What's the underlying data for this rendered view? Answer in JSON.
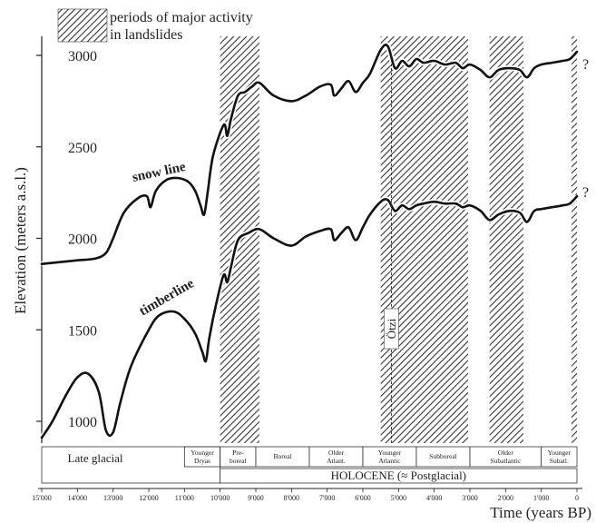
{
  "chart_data": {
    "type": "line",
    "title": "",
    "xlabel": "Time (years BP)",
    "ylabel": "Elevation (meters a.s.l.)",
    "x_reversed": true,
    "xlim": [
      15000,
      0
    ],
    "ylim": [
      900,
      3100
    ],
    "x_ticks": [
      15000,
      14000,
      13000,
      12000,
      11000,
      10000,
      9000,
      8000,
      7000,
      6000,
      5000,
      4000,
      3000,
      2000,
      1000,
      0
    ],
    "x_tick_labels": [
      "15'000",
      "14'000",
      "13'000",
      "12'000",
      "11'000",
      "10'000",
      "9'000",
      "8'000",
      "7'000",
      "6'000",
      "5'000",
      "4'000",
      "3'000",
      "2'000",
      "1'000",
      "0"
    ],
    "y_ticks": [
      1000,
      1500,
      2000,
      2500,
      3000
    ],
    "y_tick_labels": [
      "1000",
      "1500",
      "2000",
      "2500",
      "3000"
    ],
    "legend": {
      "label_line1": "periods of major activity",
      "label_line2": "in landslides",
      "placement": "top-left"
    },
    "shaded_periods": [
      {
        "from": 10000,
        "to": 8900
      },
      {
        "from": 5500,
        "to": 3050
      },
      {
        "from": 2450,
        "to": 1500
      },
      {
        "from": 150,
        "to": 0
      }
    ],
    "annotations": {
      "otzi": "Ötzi",
      "otzi_x": 5200,
      "unknown_mark": "?"
    },
    "series": [
      {
        "name": "snow line",
        "points": [
          [
            15000,
            1860
          ],
          [
            14500,
            1870
          ],
          [
            14000,
            1880
          ],
          [
            13500,
            1890
          ],
          [
            13200,
            1920
          ],
          [
            13000,
            2000
          ],
          [
            12700,
            2140
          ],
          [
            12300,
            2220
          ],
          [
            12050,
            2230
          ],
          [
            11950,
            2170
          ],
          [
            11800,
            2260
          ],
          [
            11500,
            2320
          ],
          [
            11200,
            2330
          ],
          [
            10900,
            2310
          ],
          [
            10700,
            2260
          ],
          [
            10550,
            2180
          ],
          [
            10450,
            2130
          ],
          [
            10350,
            2250
          ],
          [
            10200,
            2450
          ],
          [
            9900,
            2620
          ],
          [
            9800,
            2560
          ],
          [
            9700,
            2650
          ],
          [
            9500,
            2780
          ],
          [
            9300,
            2800
          ],
          [
            9100,
            2830
          ],
          [
            8900,
            2850
          ],
          [
            8500,
            2780
          ],
          [
            8000,
            2750
          ],
          [
            7600,
            2780
          ],
          [
            7200,
            2830
          ],
          [
            6900,
            2840
          ],
          [
            6800,
            2780
          ],
          [
            6600,
            2820
          ],
          [
            6400,
            2860
          ],
          [
            6200,
            2800
          ],
          [
            6000,
            2850
          ],
          [
            5800,
            2900
          ],
          [
            5500,
            3030
          ],
          [
            5300,
            3050
          ],
          [
            5100,
            2930
          ],
          [
            4900,
            2970
          ],
          [
            4700,
            2940
          ],
          [
            4500,
            2980
          ],
          [
            4300,
            2960
          ],
          [
            4000,
            2970
          ],
          [
            3700,
            2950
          ],
          [
            3400,
            2960
          ],
          [
            3200,
            2930
          ],
          [
            3000,
            2950
          ],
          [
            2700,
            2920
          ],
          [
            2450,
            2880
          ],
          [
            2200,
            2920
          ],
          [
            1900,
            2930
          ],
          [
            1600,
            2920
          ],
          [
            1400,
            2880
          ],
          [
            1200,
            2930
          ],
          [
            1000,
            2950
          ],
          [
            700,
            2960
          ],
          [
            400,
            2970
          ],
          [
            200,
            2980
          ],
          [
            0,
            3020
          ]
        ]
      },
      {
        "name": "timberline",
        "points": [
          [
            15000,
            910
          ],
          [
            14700,
            1000
          ],
          [
            14300,
            1150
          ],
          [
            14000,
            1240
          ],
          [
            13700,
            1260
          ],
          [
            13400,
            1160
          ],
          [
            13200,
            950
          ],
          [
            13000,
            940
          ],
          [
            12800,
            1100
          ],
          [
            12500,
            1300
          ],
          [
            12000,
            1500
          ],
          [
            11700,
            1580
          ],
          [
            11300,
            1600
          ],
          [
            11000,
            1560
          ],
          [
            10700,
            1480
          ],
          [
            10500,
            1380
          ],
          [
            10400,
            1330
          ],
          [
            10300,
            1460
          ],
          [
            10100,
            1650
          ],
          [
            9900,
            1800
          ],
          [
            9800,
            1760
          ],
          [
            9700,
            1840
          ],
          [
            9500,
            1990
          ],
          [
            9200,
            2030
          ],
          [
            8900,
            2050
          ],
          [
            8500,
            2000
          ],
          [
            8000,
            1960
          ],
          [
            7600,
            2010
          ],
          [
            7200,
            2040
          ],
          [
            6900,
            2050
          ],
          [
            6800,
            1990
          ],
          [
            6600,
            2030
          ],
          [
            6400,
            2060
          ],
          [
            6200,
            1990
          ],
          [
            6000,
            2060
          ],
          [
            5800,
            2130
          ],
          [
            5500,
            2200
          ],
          [
            5300,
            2210
          ],
          [
            5100,
            2150
          ],
          [
            4900,
            2180
          ],
          [
            4700,
            2160
          ],
          [
            4500,
            2180
          ],
          [
            4300,
            2190
          ],
          [
            4000,
            2200
          ],
          [
            3700,
            2190
          ],
          [
            3400,
            2190
          ],
          [
            3200,
            2170
          ],
          [
            3000,
            2180
          ],
          [
            2700,
            2150
          ],
          [
            2450,
            2100
          ],
          [
            2200,
            2130
          ],
          [
            1900,
            2150
          ],
          [
            1600,
            2140
          ],
          [
            1400,
            2090
          ],
          [
            1200,
            2150
          ],
          [
            1000,
            2160
          ],
          [
            700,
            2170
          ],
          [
            400,
            2180
          ],
          [
            200,
            2190
          ],
          [
            0,
            2230
          ]
        ]
      }
    ],
    "climate_periods": [
      {
        "label": "Younger Dryas",
        "from": 11000,
        "to": 10000
      },
      {
        "label": "Pre-boreal",
        "from": 10000,
        "to": 9000
      },
      {
        "label": "Boreal",
        "from": 9000,
        "to": 7500
      },
      {
        "label": "Older Atlant.",
        "from": 7500,
        "to": 6000
      },
      {
        "label": "Younger Atlantic",
        "from": 6000,
        "to": 4500
      },
      {
        "label": "Subboreal",
        "from": 4500,
        "to": 3000
      },
      {
        "label": "Older Subatlantic",
        "from": 3000,
        "to": 1000
      },
      {
        "label": "Younger Subatl.",
        "from": 1000,
        "to": 0
      }
    ],
    "eras": [
      {
        "label": "Late glacial",
        "from": 15000,
        "to": 10000
      },
      {
        "label": "HOLOCENE (≈ Postglacial)",
        "from": 10000,
        "to": 0
      }
    ]
  }
}
